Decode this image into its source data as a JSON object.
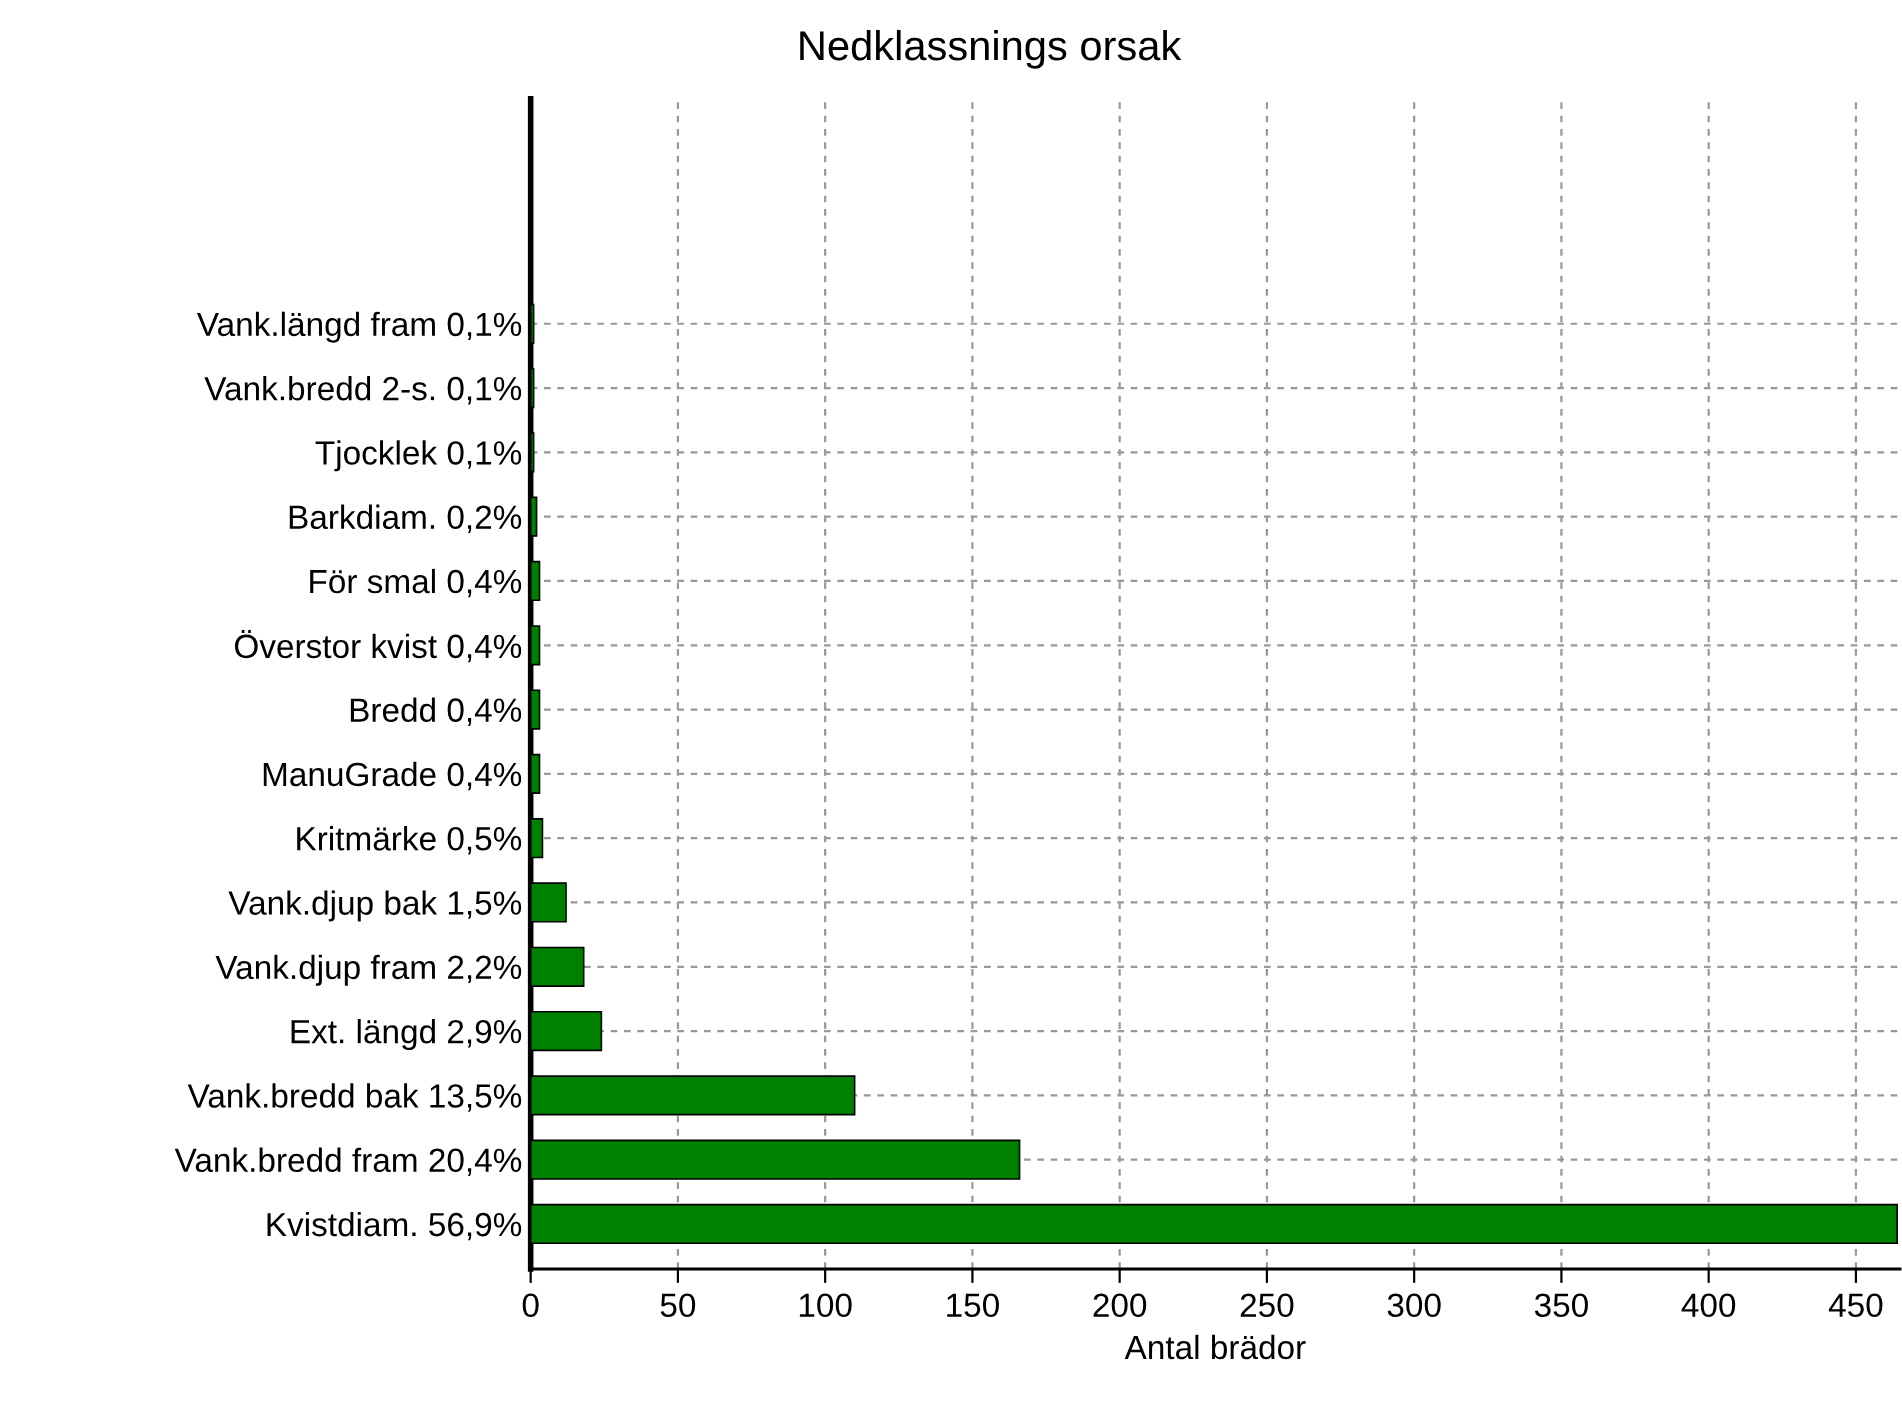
{
  "chart_data": {
    "type": "bar",
    "orientation": "horizontal",
    "title": "Nedklassnings orsak",
    "xlabel": "Antal brädor",
    "categories": [
      "Vank.längd fram 0,1%",
      "Vank.bredd 2-s. 0,1%",
      "Tjocklek 0,1%",
      "Barkdiam. 0,2%",
      "För smal 0,4%",
      "Överstor kvist 0,4%",
      "Bredd 0,4%",
      "ManuGrade 0,4%",
      "Kritmärke 0,5%",
      "Vank.djup bak 1,5%",
      "Vank.djup fram 2,2%",
      "Ext. längd 2,9%",
      "Vank.bredd bak 13,5%",
      "Vank.bredd fram 20,4%",
      "Kvistdiam. 56,9%"
    ],
    "values": [
      1,
      1,
      1,
      2,
      3,
      3,
      3,
      3,
      4,
      12,
      18,
      24,
      110,
      166,
      464
    ],
    "color": "#008000",
    "xlim": [
      0,
      465
    ],
    "xticks": [
      0,
      50,
      100,
      150,
      200,
      250,
      300,
      350,
      400,
      450
    ],
    "grid": true
  }
}
